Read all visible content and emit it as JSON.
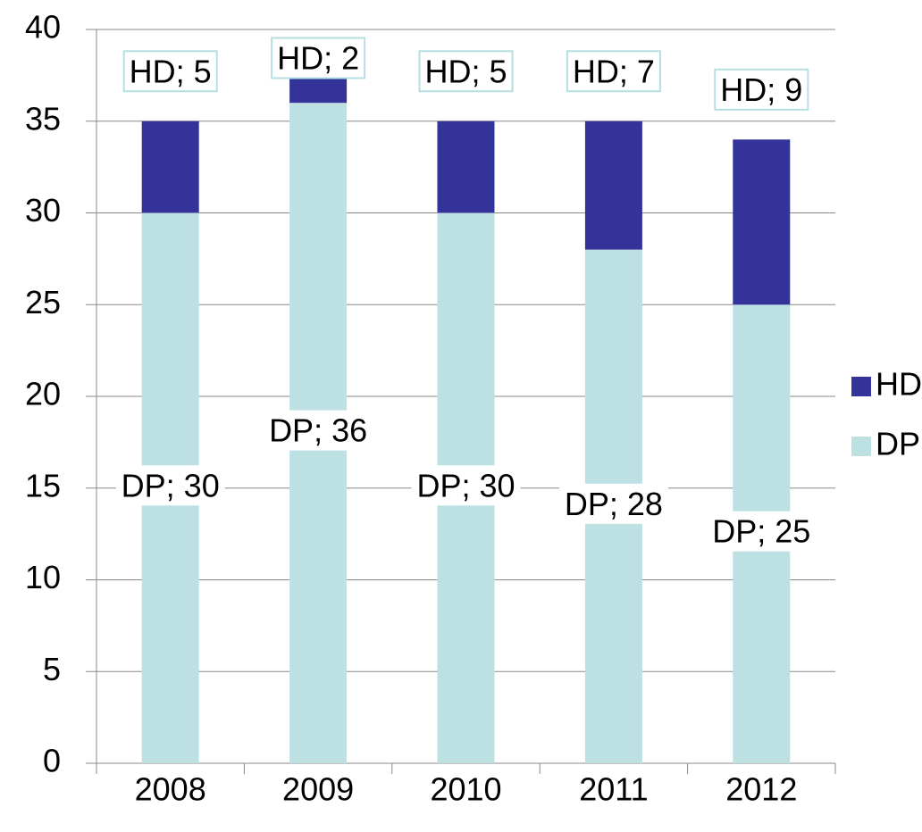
{
  "chart_data": {
    "type": "stacked_bar",
    "categories": [
      "2008",
      "2009",
      "2010",
      "2011",
      "2012"
    ],
    "series": [
      {
        "name": "DP",
        "color": "#bde0e3",
        "values": [
          30,
          36,
          30,
          28,
          25
        ],
        "value_labels": [
          "DP; 30",
          "DP; 36",
          "DP; 30",
          "DP; 28",
          "DP; 25"
        ]
      },
      {
        "name": "HD",
        "color": "#333399",
        "values": [
          5,
          2,
          5,
          7,
          9
        ],
        "value_labels": [
          "HD; 5",
          "HD; 2",
          "HD; 5",
          "HD; 7",
          "HD; 9"
        ]
      }
    ],
    "ylim": [
      0,
      40
    ],
    "yticks": [
      0,
      5,
      10,
      15,
      20,
      25,
      30,
      35,
      40
    ],
    "grid": true,
    "legend": "right"
  }
}
